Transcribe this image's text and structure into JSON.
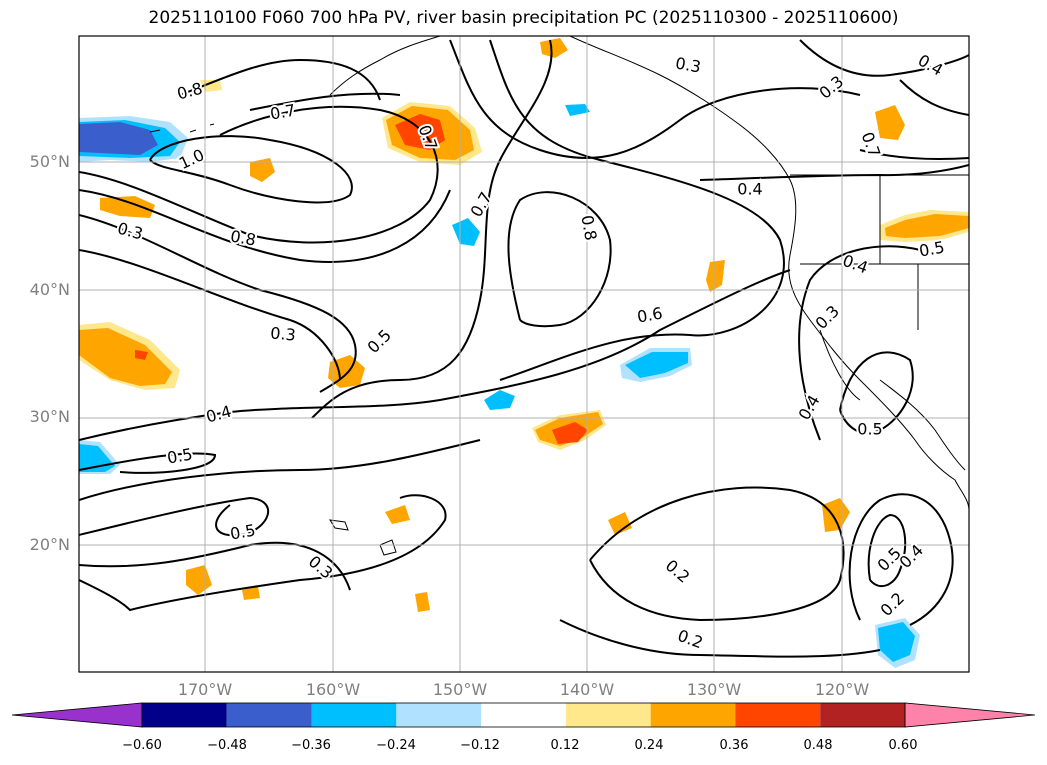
{
  "title": "2025110100 F060 700 hPa PV, river basin precipitation PC (2025110300 - 2025110600)",
  "axes": {
    "lat_labels": [
      "50°N",
      "40°N",
      "30°N",
      "20°N"
    ],
    "lon_labels": [
      "170°W",
      "160°W",
      "150°W",
      "140°W",
      "130°W",
      "120°W"
    ]
  },
  "contour_labels": [
    {
      "text": "0.8",
      "name": "contour-label-0-8-a"
    },
    {
      "text": "0.7",
      "name": "contour-label-0-7-a"
    },
    {
      "text": "1.0",
      "name": "contour-label-1-0"
    },
    {
      "text": "0.8",
      "name": "contour-label-0-8-b"
    },
    {
      "text": "0.3",
      "name": "contour-label-0-3-a"
    },
    {
      "text": "0.7",
      "name": "contour-label-0-7-b"
    },
    {
      "text": "0.7",
      "name": "contour-label-0-7-c"
    },
    {
      "text": "0.8",
      "name": "contour-label-0-8-c"
    },
    {
      "text": "0.3",
      "name": "contour-label-0-3-b"
    },
    {
      "text": "0.4",
      "name": "contour-label-0-4-a"
    },
    {
      "text": "0.3",
      "name": "contour-label-0-3-c"
    },
    {
      "text": "0.4",
      "name": "contour-label-0-4-b"
    },
    {
      "text": "0.5",
      "name": "contour-label-0-5-a"
    },
    {
      "text": "0.4",
      "name": "contour-label-0-4-c"
    },
    {
      "text": "0.5",
      "name": "contour-label-0-5-b"
    },
    {
      "text": "0.3",
      "name": "contour-label-0-3-d"
    },
    {
      "text": "0.6",
      "name": "contour-label-0-6"
    },
    {
      "text": "0.4",
      "name": "contour-label-0-4-d"
    },
    {
      "text": "0.5",
      "name": "contour-label-0-5-c"
    },
    {
      "text": "0.5",
      "name": "contour-label-0-5-d"
    },
    {
      "text": "0.5",
      "name": "contour-label-0-5-e"
    },
    {
      "text": "0.3",
      "name": "contour-label-0-3-e"
    },
    {
      "text": "0.3",
      "name": "contour-label-0-3-f"
    },
    {
      "text": "0.2",
      "name": "contour-label-0-2-a"
    },
    {
      "text": "0.2",
      "name": "contour-label-0-2-b"
    },
    {
      "text": "0.5",
      "name": "contour-label-0-5-f"
    },
    {
      "text": "0.4",
      "name": "contour-label-0-4-e"
    },
    {
      "text": "0.2",
      "name": "contour-label-0-2-c"
    },
    {
      "text": "0.4",
      "name": "contour-label-0-4-f"
    },
    {
      "text": "0.7",
      "name": "contour-label-0-7-d"
    }
  ],
  "colorbar": {
    "colors": [
      "#9932CC",
      "#00008B",
      "#3A5FCD",
      "#00BFFF",
      "#B0E2FF",
      "#FFFFFF",
      "#FFE78C",
      "#FFA500",
      "#FF4500",
      "#B22222",
      "#FF82AB"
    ],
    "labels": [
      "−0.60",
      "−0.48",
      "−0.36",
      "−0.24",
      "−0.12",
      "0.12",
      "0.24",
      "0.36",
      "0.48",
      "0.60"
    ]
  },
  "map_colors": {
    "grid": "#B0B0B0",
    "contour": "#000000",
    "coast": "#000000"
  }
}
